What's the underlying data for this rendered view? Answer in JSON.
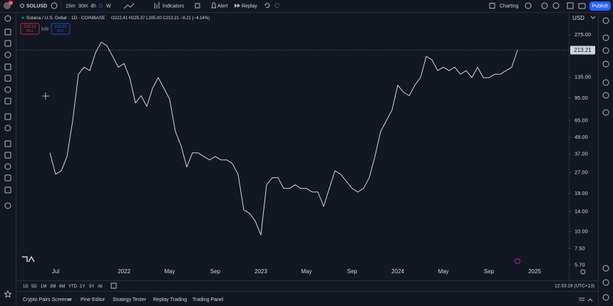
{
  "top_bar": {
    "notifications": "11",
    "symbol": "SOLUSD",
    "intervals": [
      "15m",
      "30m",
      "4h",
      "D",
      "W"
    ],
    "indicators": "Indicators",
    "alert": "Alert",
    "replay": "Replay",
    "layout": "Charting",
    "publish": "Publish"
  },
  "legend": {
    "title": "Solana / U.S. Dollar · 1D · COINBASE",
    "ohlc": "O222.41 H225.37 L205.00 C213.21 −9.21 (−4.14%)",
    "sell_price": "213.19",
    "sell": "SELL",
    "spread": "0.03",
    "buy_price": "213.21",
    "buy": "BUY"
  },
  "chart_data": {
    "type": "line",
    "color": "#d1d4dc",
    "log_scale": true,
    "grid": false,
    "currency": "USD",
    "last_price": 213.21,
    "ylim": [
      4.5,
      400
    ],
    "yticks": [
      {
        "value": 5.7,
        "label": "5.70"
      },
      {
        "value": 7.5,
        "label": "7.50"
      },
      {
        "value": 10,
        "label": "10.00"
      },
      {
        "value": 14,
        "label": "14.00"
      },
      {
        "value": 19,
        "label": "19.00"
      },
      {
        "value": 27,
        "label": "27.00"
      },
      {
        "value": 37,
        "label": "37.00"
      },
      {
        "value": 49,
        "label": "49.00"
      },
      {
        "value": 65,
        "label": "65.00"
      },
      {
        "value": 95,
        "label": "95.00"
      },
      {
        "value": 135,
        "label": "135.00"
      },
      {
        "value": 275,
        "label": "275.00"
      }
    ],
    "categories": [
      null,
      "Jul",
      null,
      null,
      null,
      null,
      null,
      null,
      null,
      null,
      null,
      null,
      null,
      "2022",
      null,
      null,
      null,
      null,
      null,
      null,
      null,
      "May",
      null,
      null,
      null,
      null,
      null,
      null,
      null,
      "Sep",
      null,
      null,
      null,
      null,
      null,
      null,
      null,
      "2023",
      null,
      null,
      null,
      null,
      null,
      null,
      null,
      "May",
      null,
      null,
      null,
      null,
      null,
      null,
      null,
      "Sep",
      null,
      null,
      null,
      null,
      null,
      null,
      null,
      "2024",
      null,
      null,
      null,
      null,
      null,
      null,
      null,
      "May",
      null,
      null,
      null,
      null,
      null,
      null,
      null,
      "Sep",
      null,
      null,
      null,
      null,
      null,
      null,
      null,
      "2025",
      null,
      null,
      null,
      null,
      null
    ],
    "values": [
      37.7,
      26.3,
      27.9,
      35.5,
      64.9,
      142,
      160,
      151,
      204,
      244,
      230,
      192,
      160,
      170,
      134,
      87.6,
      98.9,
      82.5,
      112,
      134,
      112,
      93.2,
      54.2,
      42.6,
      29.7,
      37.7,
      37.7,
      35.5,
      33.5,
      35.5,
      33.5,
      33.5,
      31.5,
      26.3,
      14.4,
      13.6,
      12.0,
      9.45,
      22.0,
      24.8,
      24.8,
      20.7,
      20.7,
      22.0,
      20.7,
      20.7,
      19.5,
      19.5,
      15.3,
      20.7,
      27.9,
      26.3,
      23.3,
      20.7,
      19.5,
      20.7,
      24.8,
      35.5,
      54.2,
      64.9,
      77.7,
      118,
      105,
      98.9,
      118,
      134,
      192,
      181,
      151,
      160,
      151,
      160,
      142,
      151,
      134,
      160,
      134,
      134,
      142,
      142,
      151,
      160,
      213.21,
      null,
      null,
      null,
      null,
      null,
      null,
      null,
      null
    ]
  },
  "ranges": [
    "1D",
    "5D",
    "1M",
    "3M",
    "6M",
    "YTD",
    "1Y",
    "5Y",
    "All"
  ],
  "clock": "12:33:19 (UTC+13)",
  "bottom_tabs": [
    "Crypto Pairs Screener",
    "Pine Editor",
    "Strategy Tester",
    "Replay Trading",
    "Trading Panel"
  ]
}
